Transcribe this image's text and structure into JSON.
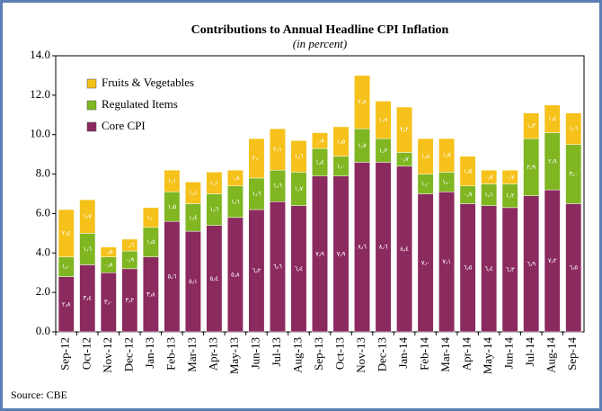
{
  "chart_data": {
    "type": "stacked_bar",
    "title": "Contributions to Annual Headline CPI Inflation",
    "subtitle": "(in percent)",
    "source": "Source:  CBE",
    "categories": [
      "Sep-12",
      "Oct-12",
      "Nov-12",
      "Dec-12",
      "Jan-13",
      "Feb-13",
      "Mar-13",
      "Apr-13",
      "May-13",
      "Jun-13",
      "Jul-13",
      "Aug-13",
      "Sep-13",
      "Oct-13",
      "Nov-13",
      "Dec-13",
      "Jan-14",
      "Feb-14",
      "Mar-14",
      "Apr-14",
      "May-14",
      "Jun-14",
      "Jul-14",
      "Aug-14",
      "Sep-14"
    ],
    "series": [
      {
        "name": "Fruits & Vegetables",
        "color": "#f5c11a",
        "values": [
          2.4,
          1.7,
          0.5,
          0.6,
          1.0,
          1.1,
          1.1,
          1.1,
          0.8,
          2.0,
          2.1,
          1.6,
          0.8,
          1.5,
          2.7,
          1.9,
          2.3,
          1.8,
          1.7,
          1.5,
          0.7,
          0.7,
          1.3,
          1.4,
          1.6
        ],
        "value_labels": [
          "٢٫٤",
          "١٫٧",
          "٠٫٥",
          "٠٫٦",
          "١٫٠",
          "١٫١",
          "١٫١",
          "١٫١",
          "٠٫٨",
          "٢٫٠",
          "٢٫١",
          "١٫٦",
          "٠٫٨",
          "١٫٥",
          "٢٫٧",
          "١٫٩",
          "٢٫٣",
          "١٫٨",
          "١٫٧",
          "١٫٥",
          "٠٫٧",
          "٠٫٧",
          "١٫٣",
          "١٫٤",
          "١٫٦"
        ]
      },
      {
        "name": "Regulated Items",
        "color": "#7fb621",
        "values": [
          1.0,
          1.6,
          0.8,
          0.9,
          1.5,
          1.5,
          1.4,
          1.6,
          1.6,
          1.6,
          1.6,
          1.7,
          1.4,
          1.0,
          1.7,
          1.2,
          0.7,
          1.0,
          1.0,
          0.9,
          1.1,
          1.2,
          2.9,
          2.9,
          3.0
        ],
        "value_labels": [
          "١٫٠",
          "١٫٦",
          "٠٫٨",
          "٠٫٩",
          "١٫٥",
          "١٫٥",
          "١٫٤",
          "١٫٦",
          "١٫٦",
          "١٫٦",
          "١٫٦",
          "١٫٧",
          "١٫٤",
          "١٫٠",
          "١٫٧",
          "١٫٢",
          "٠٫٧",
          "١٫٠",
          "١٫٠",
          "٠٫٩",
          "١٫١",
          "١٫٢",
          "٢٫٩",
          "٢٫٩",
          "٣٫٠"
        ]
      },
      {
        "name": "Core CPI",
        "color": "#8b2a5e",
        "values": [
          2.8,
          3.4,
          3.0,
          3.2,
          3.8,
          5.6,
          5.1,
          5.4,
          5.8,
          6.2,
          6.6,
          6.4,
          7.9,
          7.9,
          8.6,
          8.6,
          8.4,
          7.0,
          7.1,
          6.5,
          6.4,
          6.3,
          6.9,
          7.2,
          6.5
        ],
        "value_labels": [
          "٢٫٨",
          "٣٫٤",
          "٣٫٠",
          "٣٫٢",
          "٣٫٨",
          "٥٫٦",
          "٥٫١",
          "٥٫٤",
          "٥٫٨",
          "٦٫٢",
          "٦٫٦",
          "٦٫٤",
          "٧٫٩",
          "٧٫٩",
          "٨٫٦",
          "٨٫٦",
          "٨٫٤",
          "٧٫٠",
          "٧٫١",
          "٦٫٥",
          "٦٫٤",
          "٦٫٣",
          "٦٫٩",
          "٧٫٢",
          "٦٫٥"
        ]
      }
    ],
    "ylim": [
      0,
      14
    ],
    "yticks": [
      {
        "value": 0,
        "label": "0.0"
      },
      {
        "value": 2,
        "label": "2.0"
      },
      {
        "value": 4,
        "label": "4.0"
      },
      {
        "value": 6,
        "label": "6.0"
      },
      {
        "value": 8,
        "label": "8.0"
      },
      {
        "value": 10,
        "label": "10.0"
      },
      {
        "value": 12,
        "label": "12.0"
      },
      {
        "value": 14,
        "label": "14.0"
      }
    ],
    "legend": "top-left"
  }
}
